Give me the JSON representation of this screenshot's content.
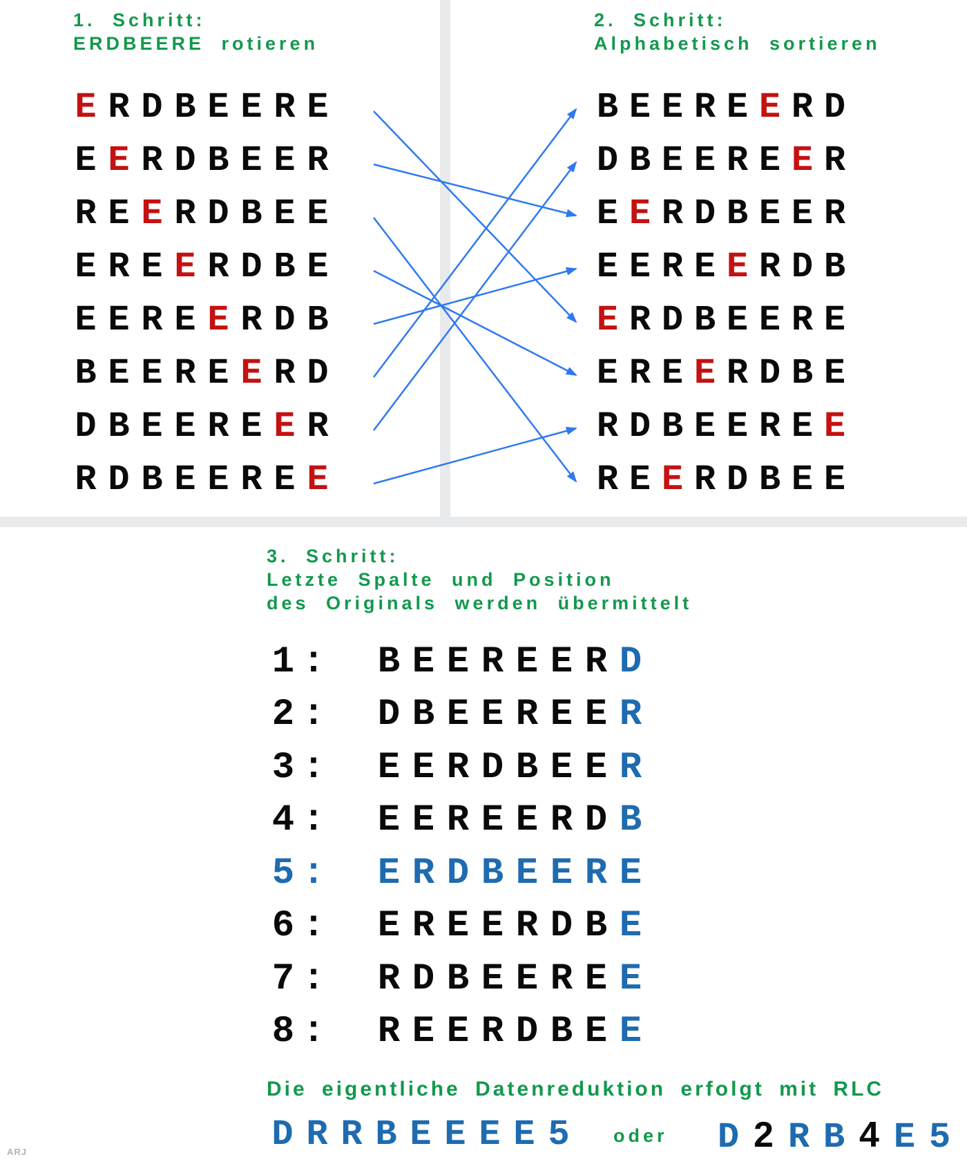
{
  "colors": {
    "green": "#12994d",
    "red": "#c41111",
    "blue": "#1e6bb0",
    "arrow_blue": "#2e79f0",
    "divider_gray": "#e8eaec",
    "text_black": "#0a0a0a",
    "watermark_gray": "#b0b4b8"
  },
  "step1": {
    "title_line1": "1. Schritt:",
    "title_line2": "ERDBEERE rotieren",
    "rows": [
      {
        "text": "ERDBEERE",
        "red_index": 0
      },
      {
        "text": "EERDBEER",
        "red_index": 1
      },
      {
        "text": "REERDBEE",
        "red_index": 2
      },
      {
        "text": "EREERDBE",
        "red_index": 3
      },
      {
        "text": "EEREERDB",
        "red_index": 4
      },
      {
        "text": "BEEREERD",
        "red_index": 5
      },
      {
        "text": "DBEEREER",
        "red_index": 6
      },
      {
        "text": "RDBEEREE",
        "red_index": 7
      }
    ]
  },
  "step2": {
    "title_line1": "2. Schritt:",
    "title_line2": "Alphabetisch sortieren",
    "rows": [
      {
        "text": "BEEREERD",
        "red_index": 5
      },
      {
        "text": "DBEEREER",
        "red_index": 6
      },
      {
        "text": "EERDBEER",
        "red_index": 1
      },
      {
        "text": "EEREERDB",
        "red_index": 4
      },
      {
        "text": "ERDBEERE",
        "red_index": 0
      },
      {
        "text": "EREERDBE",
        "red_index": 3
      },
      {
        "text": "RDBEEREE",
        "red_index": 7
      },
      {
        "text": "REERDBEE",
        "red_index": 2
      }
    ]
  },
  "arrows": [
    {
      "from": 1,
      "to": 5
    },
    {
      "from": 2,
      "to": 3
    },
    {
      "from": 3,
      "to": 8
    },
    {
      "from": 4,
      "to": 6
    },
    {
      "from": 5,
      "to": 4
    },
    {
      "from": 6,
      "to": 1
    },
    {
      "from": 7,
      "to": 2
    },
    {
      "from": 8,
      "to": 7
    }
  ],
  "step3": {
    "title_line1": "3. Schritt:",
    "title_line2": "Letzte Spalte und Position",
    "title_line3": "des Originals werden übermittelt",
    "rows": [
      {
        "num": "1",
        "sep": ":",
        "text": "BEEREERD",
        "highlight": "last"
      },
      {
        "num": "2",
        "sep": ":",
        "text": "DBEEREER",
        "highlight": "last"
      },
      {
        "num": "3",
        "sep": ":",
        "text": "EERDBEER",
        "highlight": "last"
      },
      {
        "num": "4",
        "sep": ":",
        "text": "EEREERDB",
        "highlight": "last"
      },
      {
        "num": "5",
        "sep": ":",
        "text": "ERDBEERE",
        "highlight": "all"
      },
      {
        "num": "6",
        "sep": ":",
        "text": "EREERDBE",
        "highlight": "last"
      },
      {
        "num": "7",
        "sep": ":",
        "text": "RDBEEREE",
        "highlight": "last"
      },
      {
        "num": "8",
        "sep": ":",
        "text": "REERDBEE",
        "highlight": "last"
      }
    ],
    "note": "Die eigentliche Datenreduktion erfolgt mit RLC",
    "code_long": {
      "text": "DRRBEEEE5",
      "black_indices": []
    },
    "oder_label": "oder",
    "code_short": {
      "text": "D2RB4E5",
      "black_indices": [
        1,
        4
      ]
    }
  },
  "watermark": "ARJ"
}
